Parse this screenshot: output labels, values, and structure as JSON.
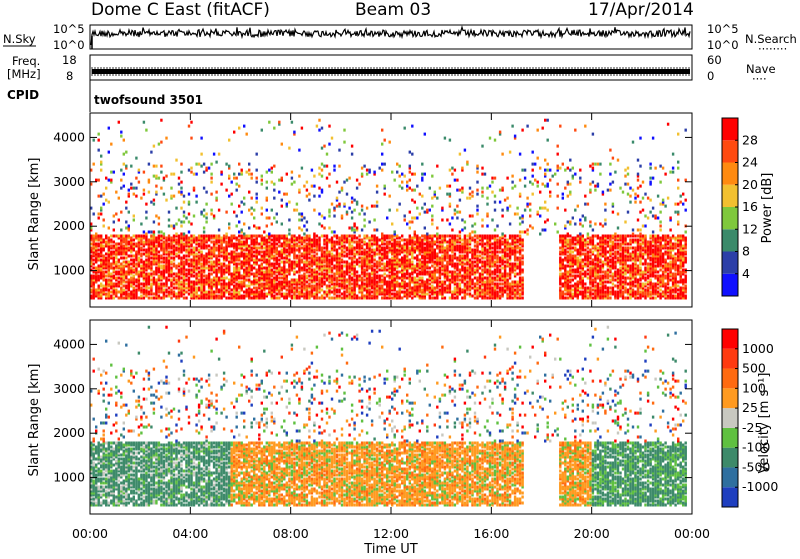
{
  "header": {
    "station": "Dome C East (fitACF)",
    "beam": "Beam 03",
    "date": "17/Apr/2014"
  },
  "top_panels": {
    "nsky_label": "N.Sky",
    "nsearch_label": "N.Search",
    "nsearch_dots": "········",
    "noise_ticks_left": [
      "10^5",
      "10^0"
    ],
    "noise_ticks_right": [
      "10^5",
      "10^0"
    ],
    "freq_label": "Freq.",
    "freq_unit": "[MHz]",
    "freq_ticks": [
      "18",
      "8"
    ],
    "nave_label": "Nave",
    "nave_dots": "····",
    "nave_ticks": [
      "60",
      "0"
    ],
    "cpid_label": "CPID",
    "cpid_value": "twofsound 3501"
  },
  "chart_data": [
    {
      "type": "heatmap",
      "name": "power",
      "ylabel": "Slant Range [km]",
      "ylim": [
        180,
        4550
      ],
      "yticks": [
        1000,
        2000,
        3000,
        4000
      ],
      "xlim": [
        0,
        24
      ],
      "xticks": [
        0,
        4,
        8,
        12,
        16,
        20,
        24
      ],
      "xtick_labels": [
        "00:00",
        "04:00",
        "08:00",
        "12:00",
        "16:00",
        "20:00",
        "00:00"
      ],
      "colorbar_label": "Power [dB]",
      "colorbar_ticks": [
        "4",
        "8",
        "12",
        "16",
        "20",
        "24",
        "28"
      ],
      "colorbar_colors": [
        "#1010ff",
        "#2c3fa8",
        "#3a8a6a",
        "#7fc83c",
        "#f2c030",
        "#ff8a10",
        "#ff4a10",
        "#ff0000"
      ],
      "main_echo_band_km": [
        350,
        1750
      ],
      "main_echo_band_hours": [
        0,
        23.8
      ]
    },
    {
      "type": "heatmap",
      "name": "velocity",
      "ylabel": "Slant Range [km]",
      "ylim": [
        180,
        4550
      ],
      "yticks": [
        1000,
        2000,
        3000,
        4000
      ],
      "xlim": [
        0,
        24
      ],
      "xticks": [
        0,
        4,
        8,
        12,
        16,
        20,
        24
      ],
      "xtick_labels": [
        "00:00",
        "04:00",
        "08:00",
        "12:00",
        "16:00",
        "20:00",
        "00:00"
      ],
      "xlabel": "Time UT",
      "colorbar_label": "Velocity [m s⁻¹]",
      "colorbar_ticks": [
        "1000",
        "500",
        "100",
        "25",
        "-25",
        "-100",
        "-500",
        "-1000"
      ],
      "colorbar_colors": [
        "#1f3fbf",
        "#2f6f9f",
        "#3d8a6a",
        "#5fc040",
        "#c8c8c0",
        "#ff9a20",
        "#ff6a10",
        "#ff3a10",
        "#ff0000"
      ],
      "main_echo_band_km": [
        350,
        1750
      ],
      "main_echo_band_hours": [
        0,
        23.8
      ]
    }
  ]
}
